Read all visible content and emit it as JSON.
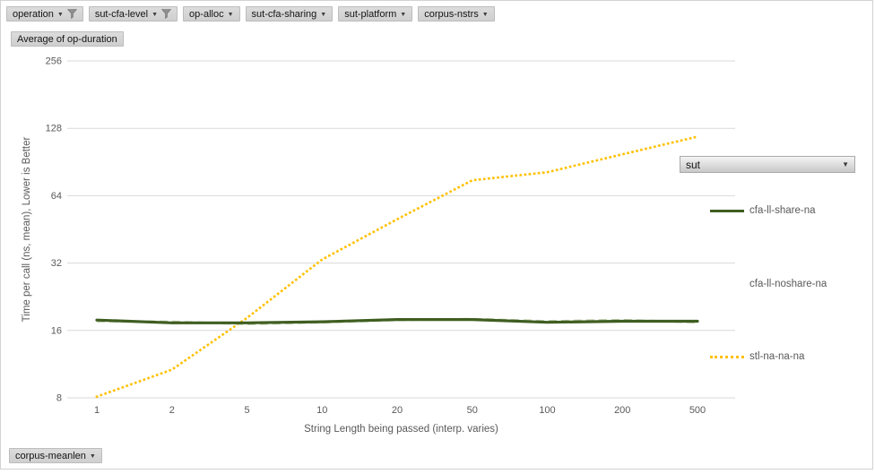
{
  "pivot_buttons": {
    "top_filters": [
      {
        "label": "operation",
        "icon": "filter-funnel"
      },
      {
        "label": "sut-cfa-level",
        "icon": "filter-funnel"
      },
      {
        "label": "op-alloc",
        "icon": "dropdown"
      },
      {
        "label": "sut-cfa-sharing",
        "icon": "dropdown"
      },
      {
        "label": "sut-platform",
        "icon": "dropdown"
      },
      {
        "label": "corpus-nstrs",
        "icon": "dropdown"
      }
    ],
    "value_button_label": "Average of op-duration",
    "bottom_axis_button": {
      "label": "corpus-meanlen",
      "icon": "dropdown"
    },
    "legend_field_button": {
      "label": "sut",
      "icon": "dropdown"
    }
  },
  "legend": {
    "entries": [
      {
        "label": "cfa-ll-share-na",
        "sample": "solid",
        "color": "#3F5E21"
      },
      {
        "label": "cfa-ll-noshare-na",
        "sample": "none",
        "color": ""
      },
      {
        "label": "stl-na-na-na",
        "sample": "dotted",
        "color": "#FFC000"
      }
    ]
  },
  "chart_data": {
    "type": "line",
    "title": "",
    "xlabel": "String Length being passed (interp. varies)",
    "ylabel": "Time per call (ns, mean), Lower is Better",
    "categories": [
      "1",
      "2",
      "5",
      "10",
      "20",
      "50",
      "100",
      "200",
      "500"
    ],
    "series": [
      {
        "name": "cfa-ll-share-na",
        "color": "#3F5E21",
        "line_style": "solid",
        "values": [
          17.8,
          17.3,
          17.3,
          17.5,
          17.9,
          17.9,
          17.4,
          17.6,
          17.6
        ]
      },
      {
        "name": "cfa-ll-noshare-na",
        "color": "#B7C7A3",
        "line_style": "dashed",
        "values": [
          17.6,
          17.5,
          17.1,
          17.4,
          17.8,
          18.0,
          17.6,
          17.8,
          17.4
        ]
      },
      {
        "name": "stl-na-na-na",
        "color": "#FFC000",
        "line_style": "dotted",
        "values": [
          8.1,
          10.7,
          18.2,
          33.2,
          50.2,
          75.0,
          81.5,
          98.0,
          117.5
        ]
      }
    ],
    "y_ticks": [
      256,
      128,
      64,
      32,
      16,
      8
    ],
    "y_scale": "log2",
    "ylim": [
      8,
      256
    ],
    "grid": true,
    "legend_position": "right",
    "colors": {
      "gridline": "#d9d9d9",
      "tick_text": "#595959",
      "axis_title_text": "#595959"
    }
  }
}
